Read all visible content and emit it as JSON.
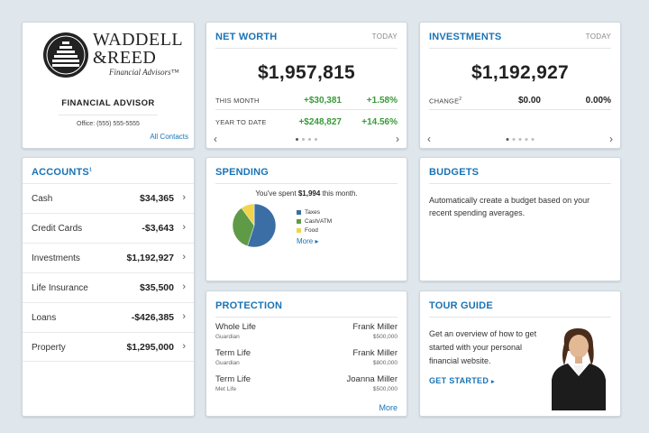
{
  "advisor": {
    "logo_line1": "WADDELL",
    "logo_line2": "&REED",
    "logo_tagline": "Financial Advisors™",
    "heading": "FINANCIAL ADVISOR",
    "office": "Office: (555) 555-5555",
    "all_contacts": "All Contacts"
  },
  "net_worth": {
    "title": "NET WORTH",
    "period": "TODAY",
    "amount": "$1,957,815",
    "rows": [
      {
        "label": "THIS MONTH",
        "value": "+$30,381",
        "percent": "+1.58%"
      },
      {
        "label": "YEAR TO DATE",
        "value": "+$248,827",
        "percent": "+14.56%"
      }
    ]
  },
  "investments": {
    "title": "INVESTMENTS",
    "period": "TODAY",
    "amount": "$1,192,927",
    "change_label": "CHANGE",
    "change_sup": "2",
    "change_value": "$0.00",
    "change_percent": "0.00%"
  },
  "accounts": {
    "title": "ACCOUNTS",
    "title_sup": "1",
    "items": [
      {
        "name": "Cash",
        "amount": "$34,365"
      },
      {
        "name": "Credit Cards",
        "amount": "-$3,643"
      },
      {
        "name": "Investments",
        "amount": "$1,192,927"
      },
      {
        "name": "Life Insurance",
        "amount": "$35,500"
      },
      {
        "name": "Loans",
        "amount": "-$426,385"
      },
      {
        "name": "Property",
        "amount": "$1,295,000"
      }
    ]
  },
  "spending": {
    "title": "SPENDING",
    "text_prefix": "You've spent",
    "text_amount": "$1,994",
    "text_suffix": "this month.",
    "legend": [
      {
        "label": "Taxes",
        "color": "#3a6ea5"
      },
      {
        "label": "Cash/ATM",
        "color": "#5f9a46"
      },
      {
        "label": "Food",
        "color": "#f0d44a"
      }
    ],
    "pie_values": [
      0.55,
      0.35,
      0.1
    ],
    "more": "More ▸"
  },
  "budgets": {
    "title": "BUDGETS",
    "text": "Automatically create a budget based on your recent spending averages."
  },
  "protection": {
    "title": "PROTECTION",
    "items": [
      {
        "type": "Whole Life",
        "provider": "Guardian",
        "person": "Frank Miller",
        "amount": "$500,000"
      },
      {
        "type": "Term Life",
        "provider": "Guardian",
        "person": "Frank Miller",
        "amount": "$800,000"
      },
      {
        "type": "Term Life",
        "provider": "Met Life",
        "person": "Joanna Miller",
        "amount": "$500,000"
      }
    ],
    "more": "More"
  },
  "tour": {
    "title": "TOUR GUIDE",
    "text": "Get an overview of how to get started with your personal financial website.",
    "cta": "GET STARTED",
    "cta_arrow": "▸"
  },
  "colors": {
    "accent": "#1a73b5",
    "positive": "#3a9a3a",
    "background": "#dfe6ec"
  }
}
